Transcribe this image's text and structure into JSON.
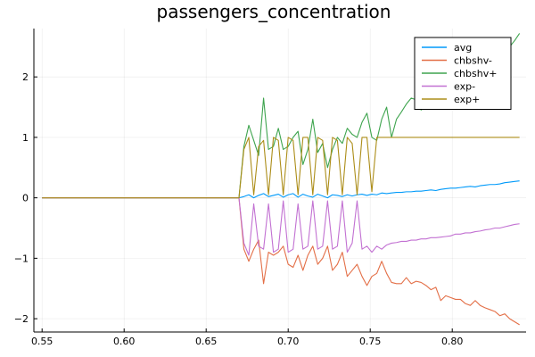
{
  "chart_data": {
    "type": "line",
    "title": "passengers_concentration",
    "xlabel": "",
    "ylabel": "",
    "xlim": [
      0.545,
      0.845
    ],
    "ylim": [
      -2.22,
      2.8
    ],
    "xticks": [
      0.55,
      0.6,
      0.65,
      0.7,
      0.75,
      0.8
    ],
    "xtick_labels": [
      "0.55",
      "0.60",
      "0.65",
      "0.70",
      "0.75",
      "0.80"
    ],
    "yticks": [
      -2,
      -1,
      0,
      1,
      2
    ],
    "ytick_labels": [
      "−2",
      "−1",
      "0",
      "1",
      "2"
    ],
    "grid": true,
    "legend_position": "top-right",
    "x": [
      0.55,
      0.6,
      0.65,
      0.67,
      0.673,
      0.676,
      0.679,
      0.682,
      0.685,
      0.688,
      0.691,
      0.694,
      0.697,
      0.7,
      0.703,
      0.706,
      0.709,
      0.712,
      0.715,
      0.718,
      0.721,
      0.724,
      0.727,
      0.73,
      0.733,
      0.736,
      0.739,
      0.742,
      0.745,
      0.748,
      0.751,
      0.754,
      0.757,
      0.76,
      0.763,
      0.766,
      0.769,
      0.772,
      0.775,
      0.778,
      0.781,
      0.784,
      0.787,
      0.79,
      0.793,
      0.796,
      0.799,
      0.802,
      0.805,
      0.808,
      0.811,
      0.814,
      0.817,
      0.82,
      0.823,
      0.826,
      0.829,
      0.832,
      0.835,
      0.838,
      0.841
    ],
    "series": [
      {
        "name": "avg",
        "color": "#009AFA",
        "values": [
          0,
          0,
          0,
          0,
          0.02,
          0.05,
          0,
          0.04,
          0.07,
          0.02,
          0.04,
          0.06,
          0.01,
          0.05,
          0.07,
          0.01,
          0.06,
          0.03,
          0.01,
          0.06,
          0.03,
          0,
          0.05,
          0.04,
          0.02,
          0.05,
          0.03,
          0.05,
          0.06,
          0.04,
          0.06,
          0.05,
          0.08,
          0.07,
          0.08,
          0.09,
          0.09,
          0.1,
          0.1,
          0.11,
          0.11,
          0.12,
          0.13,
          0.12,
          0.14,
          0.15,
          0.16,
          0.16,
          0.17,
          0.18,
          0.19,
          0.18,
          0.2,
          0.21,
          0.22,
          0.22,
          0.23,
          0.25,
          0.26,
          0.27,
          0.28
        ]
      },
      {
        "name": "chbshv-",
        "color": "#E36F47",
        "values": [
          0,
          0,
          0,
          0,
          -0.85,
          -1.05,
          -0.85,
          -0.7,
          -1.42,
          -0.9,
          -0.95,
          -0.9,
          -0.8,
          -1.1,
          -1.15,
          -0.95,
          -1.2,
          -0.95,
          -0.8,
          -1.1,
          -1.0,
          -0.8,
          -1.2,
          -1.1,
          -0.9,
          -1.3,
          -1.2,
          -1.1,
          -1.3,
          -1.45,
          -1.3,
          -1.25,
          -1.05,
          -1.25,
          -1.4,
          -1.42,
          -1.42,
          -1.32,
          -1.42,
          -1.38,
          -1.4,
          -1.45,
          -1.52,
          -1.48,
          -1.7,
          -1.62,
          -1.65,
          -1.68,
          -1.68,
          -1.75,
          -1.78,
          -1.7,
          -1.78,
          -1.82,
          -1.85,
          -1.88,
          -1.95,
          -1.92,
          -2.0,
          -2.05,
          -2.1
        ]
      },
      {
        "name": "chbshv+",
        "color": "#3EA44E",
        "values": [
          0,
          0,
          0,
          0,
          0.85,
          1.2,
          0.95,
          0.7,
          1.65,
          0.8,
          0.85,
          1.15,
          0.8,
          0.85,
          1.0,
          1.1,
          0.55,
          0.8,
          1.3,
          0.75,
          0.9,
          0.5,
          0.8,
          1.0,
          0.9,
          1.15,
          1.05,
          1.0,
          1.25,
          1.4,
          1.0,
          0.95,
          1.3,
          1.5,
          1.0,
          1.3,
          1.42,
          1.55,
          1.65,
          1.62,
          1.45,
          1.72,
          1.75,
          1.8,
          1.78,
          1.85,
          1.9,
          1.9,
          2.0,
          2.05,
          2.08,
          2.1,
          2.15,
          2.2,
          2.25,
          2.3,
          2.35,
          2.4,
          2.5,
          2.6,
          2.72
        ]
      },
      {
        "name": "exp-",
        "color": "#C271D2",
        "values": [
          0,
          0,
          0,
          0,
          -0.75,
          -0.95,
          -0.1,
          -0.8,
          -0.85,
          -0.1,
          -0.9,
          -0.85,
          -0.05,
          -0.9,
          -0.85,
          -0.1,
          -0.85,
          -0.8,
          -0.05,
          -0.85,
          -0.8,
          -0.05,
          -0.85,
          -0.8,
          -0.05,
          -0.9,
          -0.75,
          -0.05,
          -0.85,
          -0.8,
          -0.9,
          -0.8,
          -0.85,
          -0.78,
          -0.75,
          -0.74,
          -0.72,
          -0.72,
          -0.7,
          -0.7,
          -0.68,
          -0.68,
          -0.66,
          -0.66,
          -0.65,
          -0.64,
          -0.63,
          -0.6,
          -0.6,
          -0.58,
          -0.58,
          -0.56,
          -0.55,
          -0.53,
          -0.52,
          -0.5,
          -0.5,
          -0.48,
          -0.46,
          -0.44,
          -0.43
        ]
      },
      {
        "name": "exp+",
        "color": "#AC8D18",
        "values": [
          0,
          0,
          0,
          0,
          0.8,
          1.0,
          0.05,
          0.85,
          0.95,
          0.05,
          1.0,
          0.95,
          0.05,
          1.0,
          0.95,
          0.05,
          1.0,
          1.0,
          0.05,
          1.0,
          0.95,
          0.05,
          1.0,
          0.95,
          0.05,
          1.0,
          0.9,
          0.05,
          1.0,
          1.0,
          0.1,
          1.0,
          1.0,
          1.0,
          1.0,
          1.0,
          1.0,
          1.0,
          1.0,
          1.0,
          1.0,
          1.0,
          1.0,
          1.0,
          1.0,
          1.0,
          1.0,
          1.0,
          1.0,
          1.0,
          1.0,
          1.0,
          1.0,
          1.0,
          1.0,
          1.0,
          1.0,
          1.0,
          1.0,
          1.0,
          1.0
        ]
      }
    ]
  }
}
